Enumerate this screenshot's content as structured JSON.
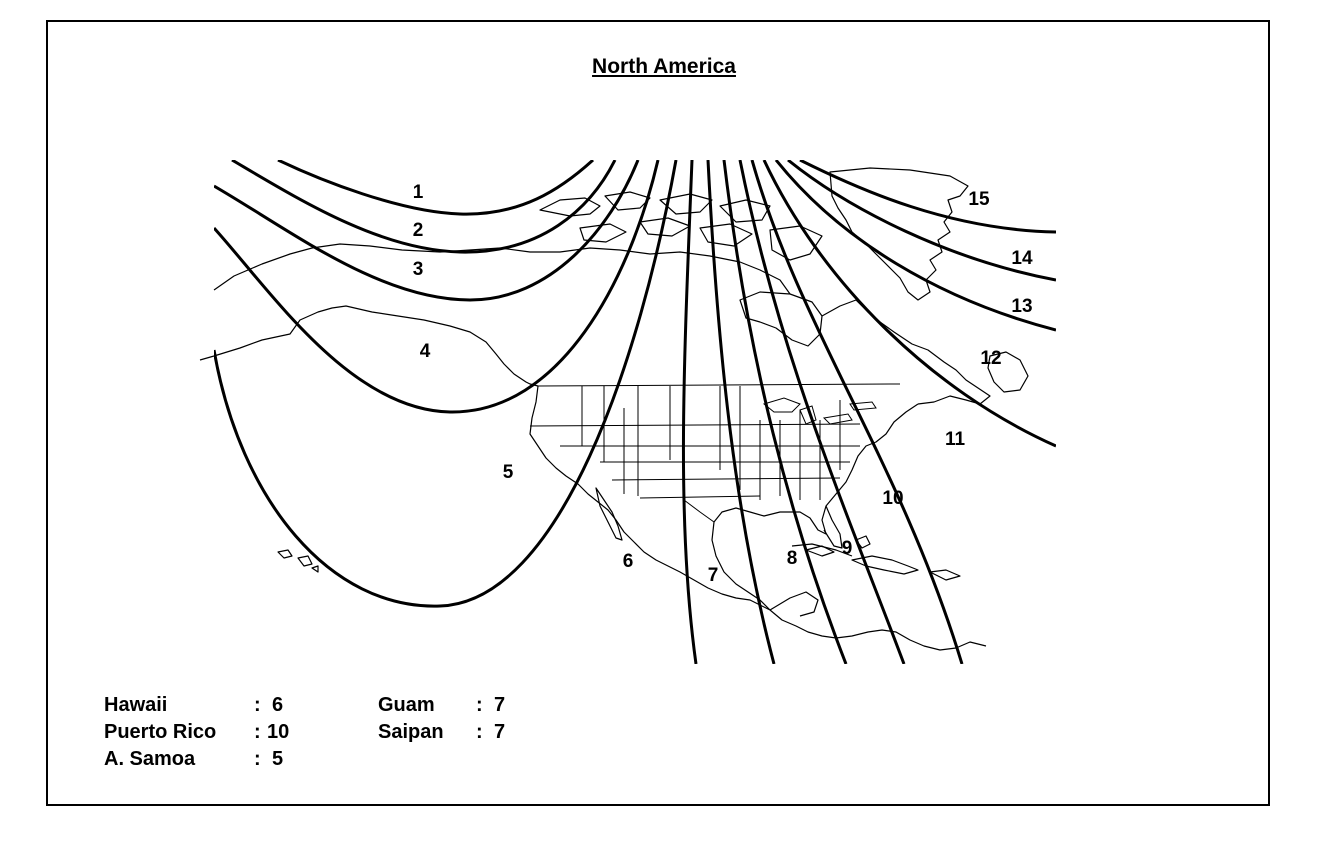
{
  "title": "North America",
  "zones": [
    "1",
    "2",
    "3",
    "4",
    "5",
    "6",
    "7",
    "8",
    "9",
    "10",
    "11",
    "12",
    "13",
    "14",
    "15"
  ],
  "legend": {
    "left": [
      {
        "name": "Hawaii",
        "sep": ":",
        "value": "6"
      },
      {
        "name": "Puerto Rico",
        "sep": ":",
        "value": "10"
      },
      {
        "name": "A. Samoa",
        "sep": ":",
        "value": "5"
      }
    ],
    "right": [
      {
        "name": "Guam",
        "sep": ":",
        "value": "7"
      },
      {
        "name": "Saipan",
        "sep": ":",
        "value": "7"
      }
    ]
  }
}
